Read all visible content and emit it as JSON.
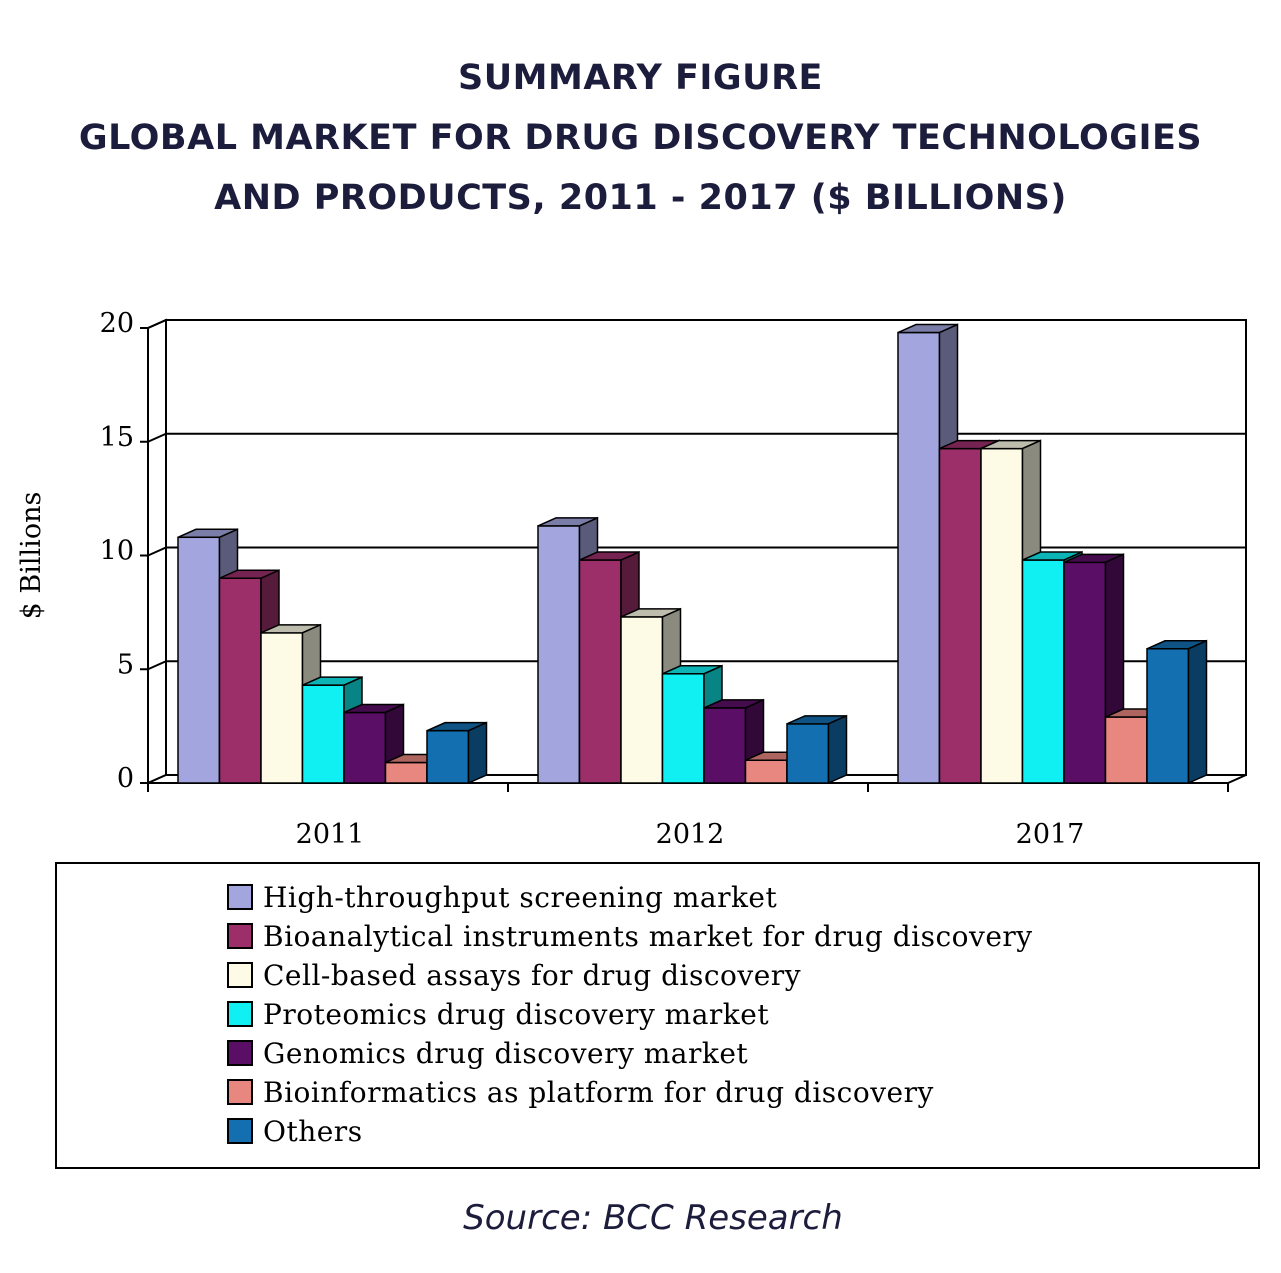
{
  "header": {
    "line1": "SUMMARY FIGURE",
    "line2": "GLOBAL MARKET FOR DRUG DISCOVERY TECHNOLOGIES",
    "line3": "AND PRODUCTS, 2011 - 2017 ($ BILLIONS)"
  },
  "source": "Source: BCC Research",
  "chart_data": {
    "type": "bar",
    "title": "SUMMARY FIGURE GLOBAL MARKET FOR DRUG DISCOVERY TECHNOLOGIES AND PRODUCTS, 2011 - 2017 ($ BILLIONS)",
    "xlabel": "",
    "ylabel": "$ Billions",
    "ylim": [
      0,
      20
    ],
    "yticks": [
      0,
      5,
      10,
      15,
      20
    ],
    "categories": [
      "2011",
      "2012",
      "2017"
    ],
    "grid": true,
    "legend_position": "bottom",
    "series": [
      {
        "name": "High-throughput screening market",
        "color": "#a3a6de",
        "values": [
          10.8,
          11.3,
          19.8
        ]
      },
      {
        "name": "Bioanalytical instruments market for drug discovery",
        "color": "#9c2f6a",
        "values": [
          9.0,
          9.8,
          14.7
        ]
      },
      {
        "name": "Cell-based assays for drug discovery",
        "color": "#fdfbe6",
        "values": [
          6.6,
          7.3,
          14.7
        ]
      },
      {
        "name": "Proteomics drug discovery market",
        "color": "#10f0f2",
        "values": [
          4.3,
          4.8,
          9.8
        ]
      },
      {
        "name": "Genomics drug discovery market",
        "color": "#5a0e66",
        "values": [
          3.1,
          3.3,
          9.7
        ]
      },
      {
        "name": "Bioinformatics as platform for drug discovery",
        "color": "#e88680",
        "values": [
          0.9,
          1.0,
          2.9
        ]
      },
      {
        "name": "Others",
        "color": "#136fb0",
        "values": [
          2.3,
          2.6,
          5.9
        ]
      }
    ]
  }
}
